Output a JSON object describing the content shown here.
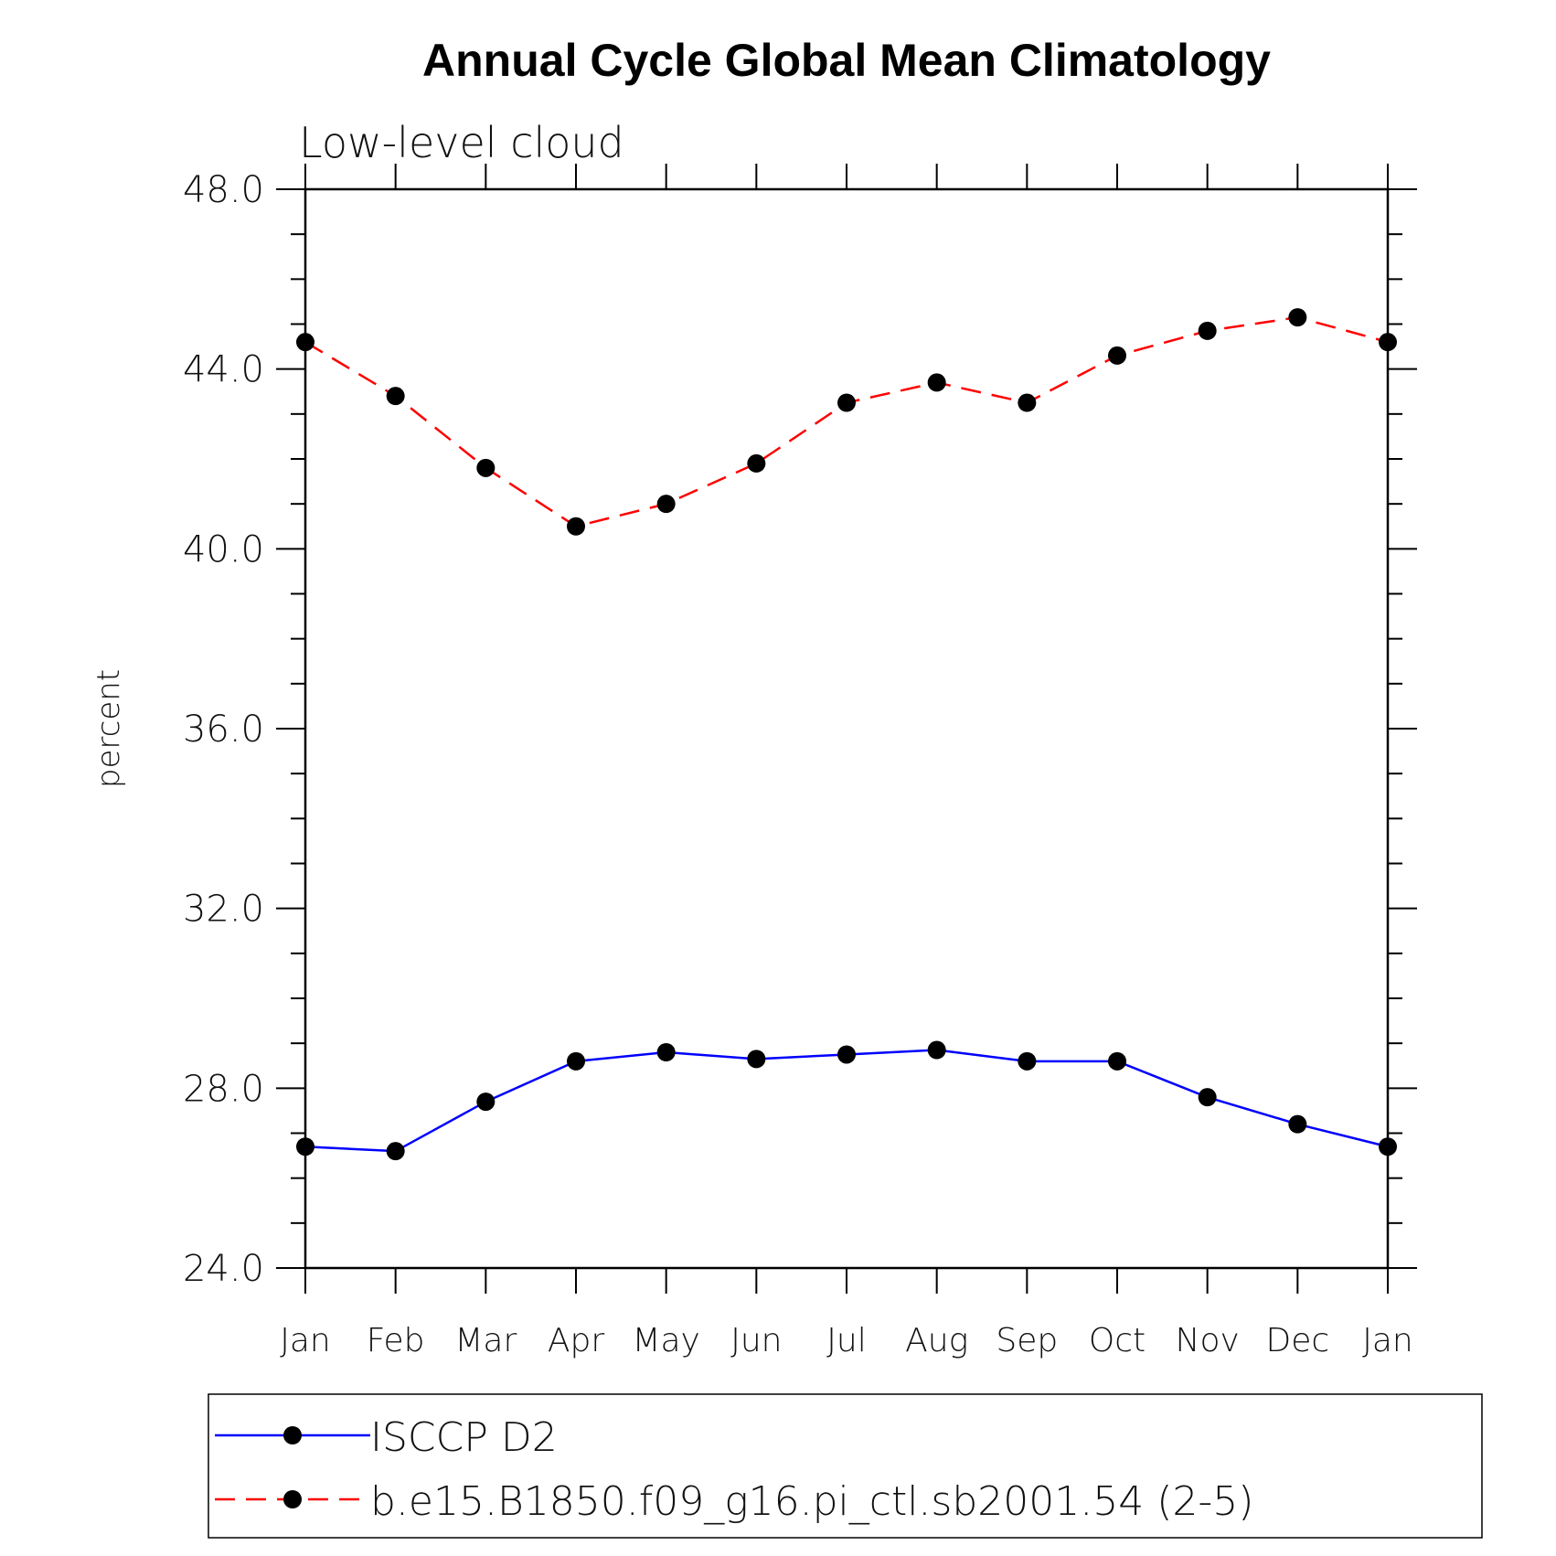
{
  "chart_data": {
    "type": "line",
    "title": "Annual Cycle Global Mean Climatology",
    "subtitle": "Low-level cloud",
    "xlabel": "",
    "ylabel": "percent",
    "ylim": [
      24.0,
      48.0
    ],
    "yticks": [
      "24.0",
      "28.0",
      "32.0",
      "36.0",
      "40.0",
      "44.0",
      "48.0"
    ],
    "categories": [
      "Jan",
      "Feb",
      "Mar",
      "Apr",
      "May",
      "Jun",
      "Jul",
      "Aug",
      "Sep",
      "Oct",
      "Nov",
      "Dec",
      "Jan"
    ],
    "grid": false,
    "legend_position": "bottom",
    "series": [
      {
        "name": "ISCCP D2",
        "color": "#0000ff",
        "dash": "solid",
        "marker": "filled-circle",
        "values": [
          26.7,
          26.6,
          27.7,
          28.6,
          28.8,
          28.65,
          28.75,
          28.85,
          28.6,
          28.6,
          27.8,
          27.2,
          26.7
        ]
      },
      {
        "name": "b.e15.B1850.f09_g16.pi_ctl.sb2001.54 (2-5)",
        "color": "#ff0000",
        "dash": "dashed",
        "marker": "filled-circle",
        "values": [
          44.6,
          43.4,
          41.8,
          40.5,
          41.0,
          41.9,
          43.25,
          43.7,
          43.25,
          44.3,
          44.85,
          45.15,
          44.6
        ]
      }
    ]
  }
}
